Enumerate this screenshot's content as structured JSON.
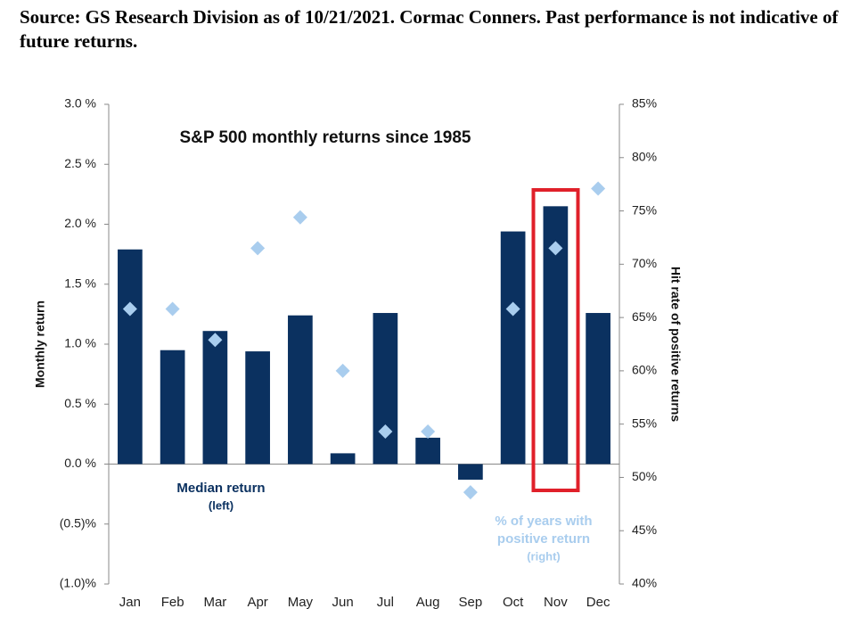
{
  "chart_data": {
    "type": "bar",
    "source": "Source: GS Research Division as of 10/21/2021. Cormac Conners. Past performance is not indicative of future returns.",
    "title": "S&P 500 monthly returns since 1985",
    "ylabel": "Monthly return",
    "y2label": "Hit rate of positive returns",
    "categories": [
      "Jan",
      "Feb",
      "Mar",
      "Apr",
      "May",
      "Jun",
      "Jul",
      "Aug",
      "Sep",
      "Oct",
      "Nov",
      "Dec"
    ],
    "series": [
      {
        "type": "bar",
        "color": "#0b3160",
        "values": [
          1.79,
          0.95,
          1.11,
          0.94,
          1.24,
          0.09,
          1.26,
          0.22,
          -0.13,
          1.94,
          2.15,
          1.26
        ]
      },
      {
        "type": "scatter",
        "axis": "y2",
        "color": "#a9cdee",
        "values": [
          65.8,
          65.8,
          62.9,
          71.5,
          74.4,
          60.0,
          54.3,
          54.3,
          48.6,
          65.8,
          71.5,
          77.1
        ]
      }
    ],
    "annotations": [
      "Median return",
      "(left)",
      "% of years with",
      "positive return",
      "(right)"
    ],
    "ylim": [
      -1.0,
      3.0
    ],
    "yticks": [
      {
        "value": -1.0,
        "label": "(1.0)%"
      },
      {
        "value": -0.5,
        "label": "(0.5)%"
      },
      {
        "value": 0.0,
        "label": "0.0 %"
      },
      {
        "value": 0.5,
        "label": "0.5 %"
      },
      {
        "value": 1.0,
        "label": "1.0 %"
      },
      {
        "value": 1.5,
        "label": "1.5 %"
      },
      {
        "value": 2.0,
        "label": "2.0 %"
      },
      {
        "value": 2.5,
        "label": "2.5 %"
      },
      {
        "value": 3.0,
        "label": "3.0 %"
      }
    ],
    "y2lim": [
      40,
      85
    ],
    "y2ticks": [
      {
        "value": 40,
        "label": "40%"
      },
      {
        "value": 45,
        "label": "45%"
      },
      {
        "value": 50,
        "label": "50%"
      },
      {
        "value": 55,
        "label": "55%"
      },
      {
        "value": 60,
        "label": "60%"
      },
      {
        "value": 65,
        "label": "65%"
      },
      {
        "value": 70,
        "label": "70%"
      },
      {
        "value": 75,
        "label": "75%"
      },
      {
        "value": 80,
        "label": "80%"
      },
      {
        "value": 85,
        "label": "85%"
      }
    ],
    "grid": false
  }
}
